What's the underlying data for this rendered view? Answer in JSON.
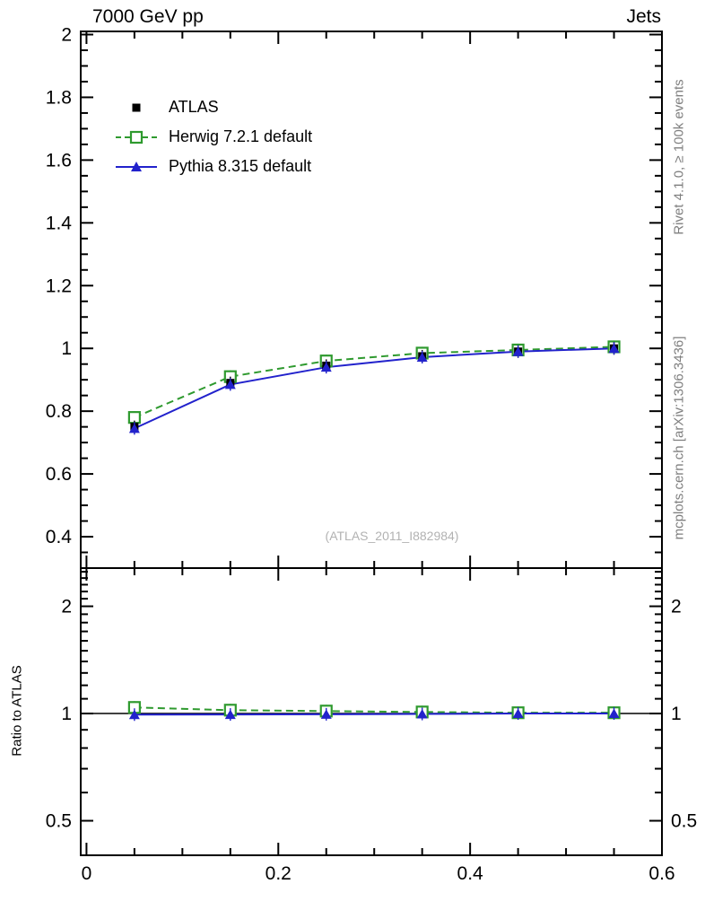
{
  "header": {
    "title_left": "7000 GeV pp",
    "title_right": "Jets"
  },
  "side_notes": {
    "top": "Rivet 4.1.0, ≥ 100k events",
    "bottom": "mcplots.cern.ch [arXiv:1306.3436]"
  },
  "watermark": "(ATLAS_2011_I882984)",
  "chart_data": {
    "type": "line",
    "title": "7000 GeV pp",
    "title_right": "Jets",
    "grid": false,
    "legend_position": "top-left-inside",
    "x": [
      0.05,
      0.15,
      0.25,
      0.35,
      0.45,
      0.55
    ],
    "series": [
      {
        "name": "ATLAS",
        "color": "#000000",
        "marker": "filled-square",
        "line": "none",
        "values": [
          0.75,
          0.89,
          0.945,
          0.975,
          0.99,
          1.0
        ],
        "show_in_ratio": false
      },
      {
        "name": "Herwig 7.2.1 default",
        "color": "#2f9a2f",
        "marker": "open-square",
        "line": "dashed",
        "values": [
          0.78,
          0.91,
          0.96,
          0.985,
          0.995,
          1.005
        ],
        "ratio": [
          1.04,
          1.022,
          1.016,
          1.01,
          1.005,
          1.005
        ],
        "show_in_ratio": true
      },
      {
        "name": "Pythia 8.315 default",
        "color": "#2222cc",
        "marker": "filled-triangle",
        "line": "solid",
        "values": [
          0.745,
          0.885,
          0.94,
          0.972,
          0.99,
          1.0
        ],
        "ratio": [
          0.993,
          0.994,
          0.995,
          0.997,
          1.0,
          1.0
        ],
        "show_in_ratio": true
      }
    ],
    "x_axis": {
      "min": -0.006,
      "max": 0.6,
      "major_ticks": [
        0,
        0.2,
        0.4,
        0.6
      ],
      "tick_labels": [
        "0",
        "0.2",
        "0.4",
        "0.6"
      ],
      "minor_step": 0.05
    },
    "main_axis": {
      "ymin": 0.3,
      "ymax": 2.01,
      "major_ticks": [
        0.4,
        0.6,
        0.8,
        1.0,
        1.2,
        1.4,
        1.6,
        1.8,
        2.0
      ],
      "tick_labels": [
        "0.4",
        "0.6",
        "0.8",
        "1",
        "1.2",
        "1.4",
        "1.6",
        "1.8",
        "2"
      ],
      "minor_step": 0.05
    },
    "ratio_axis": {
      "label": "Ratio to ATLAS",
      "scale": "log",
      "ymin": 0.4,
      "ymax": 2.56,
      "major_ticks": [
        0.5,
        1,
        2
      ],
      "tick_labels": [
        "0.5",
        "1",
        "2"
      ],
      "minor_ticks": [
        0.6,
        0.7,
        0.8,
        0.9,
        1.1,
        1.2,
        1.3,
        1.4,
        1.5,
        1.6,
        1.7,
        1.8,
        1.9,
        2.1,
        2.2,
        2.3,
        2.4,
        2.5
      ],
      "reference_line": 1
    }
  }
}
